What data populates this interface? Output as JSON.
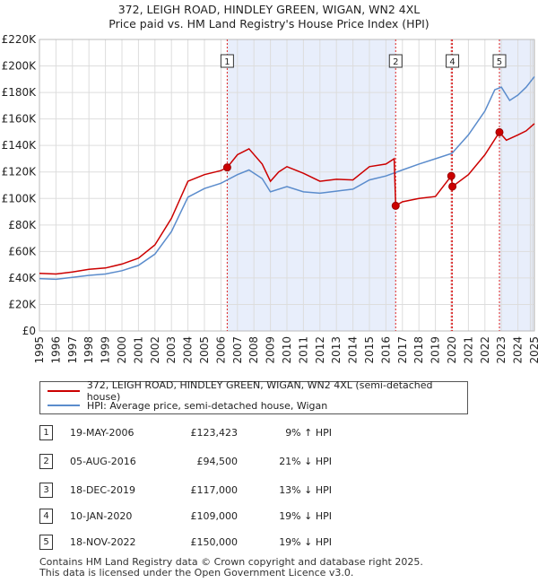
{
  "title": "372, LEIGH ROAD, HINDLEY GREEN, WIGAN, WN2 4XL",
  "subtitle": "Price paid vs. HM Land Registry's House Price Index (HPI)",
  "chart_data": {
    "type": "line",
    "x_ticks": [
      "1995",
      "1996",
      "1997",
      "1998",
      "1999",
      "2000",
      "2001",
      "2002",
      "2003",
      "2004",
      "2005",
      "2006",
      "2007",
      "2008",
      "2009",
      "2010",
      "2011",
      "2012",
      "2013",
      "2014",
      "2015",
      "2016",
      "2017",
      "2018",
      "2019",
      "2020",
      "2021",
      "2022",
      "2023",
      "2024",
      "2025"
    ],
    "y_ticks": [
      "£0",
      "£20K",
      "£40K",
      "£60K",
      "£80K",
      "£100K",
      "£120K",
      "£140K",
      "£160K",
      "£180K",
      "£200K",
      "£220K"
    ],
    "xlim": [
      1995,
      2025
    ],
    "ylim": [
      0,
      220000
    ],
    "shaded_ranges": [
      [
        2006.38,
        2016.59
      ],
      [
        2022.88,
        2025
      ]
    ],
    "series": [
      {
        "name": "372, LEIGH ROAD, HINDLEY GREEN, WIGAN, WN2 4XL (semi-detached house)",
        "color": "#cc0000",
        "points": [
          [
            1995,
            43500
          ],
          [
            1996,
            43000
          ],
          [
            1997,
            44500
          ],
          [
            1998,
            46500
          ],
          [
            1999,
            47500
          ],
          [
            2000,
            50500
          ],
          [
            2001,
            55000
          ],
          [
            2002,
            65000
          ],
          [
            2003,
            85000
          ],
          [
            2004,
            113000
          ],
          [
            2005,
            118000
          ],
          [
            2006,
            121000
          ],
          [
            2006.38,
            123423
          ],
          [
            2007,
            133000
          ],
          [
            2007.7,
            137500
          ],
          [
            2008.5,
            126000
          ],
          [
            2009,
            113000
          ],
          [
            2009.5,
            120000
          ],
          [
            2010,
            124000
          ],
          [
            2011,
            119000
          ],
          [
            2012,
            113000
          ],
          [
            2013,
            114500
          ],
          [
            2014,
            114000
          ],
          [
            2015,
            124000
          ],
          [
            2016,
            126000
          ],
          [
            2016.5,
            130000
          ],
          [
            2016.59,
            94500
          ],
          [
            2017,
            97500
          ],
          [
            2018,
            100000
          ],
          [
            2019,
            101500
          ],
          [
            2019.96,
            117000
          ],
          [
            2020.03,
            109000
          ],
          [
            2021,
            118000
          ],
          [
            2022,
            133000
          ],
          [
            2022.88,
            150000
          ],
          [
            2023.3,
            144000
          ],
          [
            2024,
            148000
          ],
          [
            2024.5,
            151000
          ],
          [
            2025,
            156500
          ]
        ]
      },
      {
        "name": "HPI: Average price, semi-detached house, Wigan",
        "color": "#5b8ccc",
        "points": [
          [
            1995,
            39500
          ],
          [
            1996,
            39000
          ],
          [
            1997,
            40500
          ],
          [
            1998,
            42000
          ],
          [
            1999,
            43000
          ],
          [
            2000,
            45500
          ],
          [
            2001,
            49500
          ],
          [
            2002,
            58000
          ],
          [
            2003,
            75000
          ],
          [
            2004,
            101000
          ],
          [
            2005,
            107500
          ],
          [
            2006,
            111500
          ],
          [
            2007,
            118000
          ],
          [
            2007.7,
            121500
          ],
          [
            2008.5,
            115000
          ],
          [
            2009,
            105000
          ],
          [
            2010,
            109000
          ],
          [
            2011,
            105000
          ],
          [
            2012,
            104000
          ],
          [
            2013,
            105500
          ],
          [
            2014,
            107000
          ],
          [
            2015,
            114000
          ],
          [
            2016,
            117000
          ],
          [
            2017,
            121500
          ],
          [
            2018,
            126000
          ],
          [
            2019,
            130000
          ],
          [
            2020,
            134000
          ],
          [
            2021,
            148000
          ],
          [
            2022,
            166000
          ],
          [
            2022.6,
            182000
          ],
          [
            2023,
            184000
          ],
          [
            2023.5,
            174000
          ],
          [
            2024,
            178000
          ],
          [
            2024.5,
            184000
          ],
          [
            2025,
            192000
          ]
        ]
      }
    ],
    "markers": [
      {
        "label": "1",
        "x": 2006.38,
        "y": 123423
      },
      {
        "label": "2",
        "x": 2016.59,
        "y": 94500
      },
      {
        "label": "3",
        "x": 2019.96,
        "y": 117000
      },
      {
        "label": "4",
        "x": 2020.03,
        "y": 109000
      },
      {
        "label": "5",
        "x": 2022.88,
        "y": 150000
      }
    ],
    "marker_boxes": [
      "1",
      "2",
      "4",
      "5"
    ]
  },
  "legend": {
    "property": "372, LEIGH ROAD, HINDLEY GREEN, WIGAN, WN2 4XL (semi-detached house)",
    "hpi": "HPI: Average price, semi-detached house, Wigan"
  },
  "transactions": [
    {
      "num": "1",
      "date": "19-MAY-2006",
      "price": "£123,423",
      "hpi": "9% ↑ HPI"
    },
    {
      "num": "2",
      "date": "05-AUG-2016",
      "price": "£94,500",
      "hpi": "21% ↓ HPI"
    },
    {
      "num": "3",
      "date": "18-DEC-2019",
      "price": "£117,000",
      "hpi": "13% ↓ HPI"
    },
    {
      "num": "4",
      "date": "10-JAN-2020",
      "price": "£109,000",
      "hpi": "19% ↓ HPI"
    },
    {
      "num": "5",
      "date": "18-NOV-2022",
      "price": "£150,000",
      "hpi": "19% ↓ HPI"
    }
  ],
  "footer": {
    "line1": "Contains HM Land Registry data © Crown copyright and database right 2025.",
    "line2": "This data is licensed under the Open Government Licence v3.0."
  }
}
